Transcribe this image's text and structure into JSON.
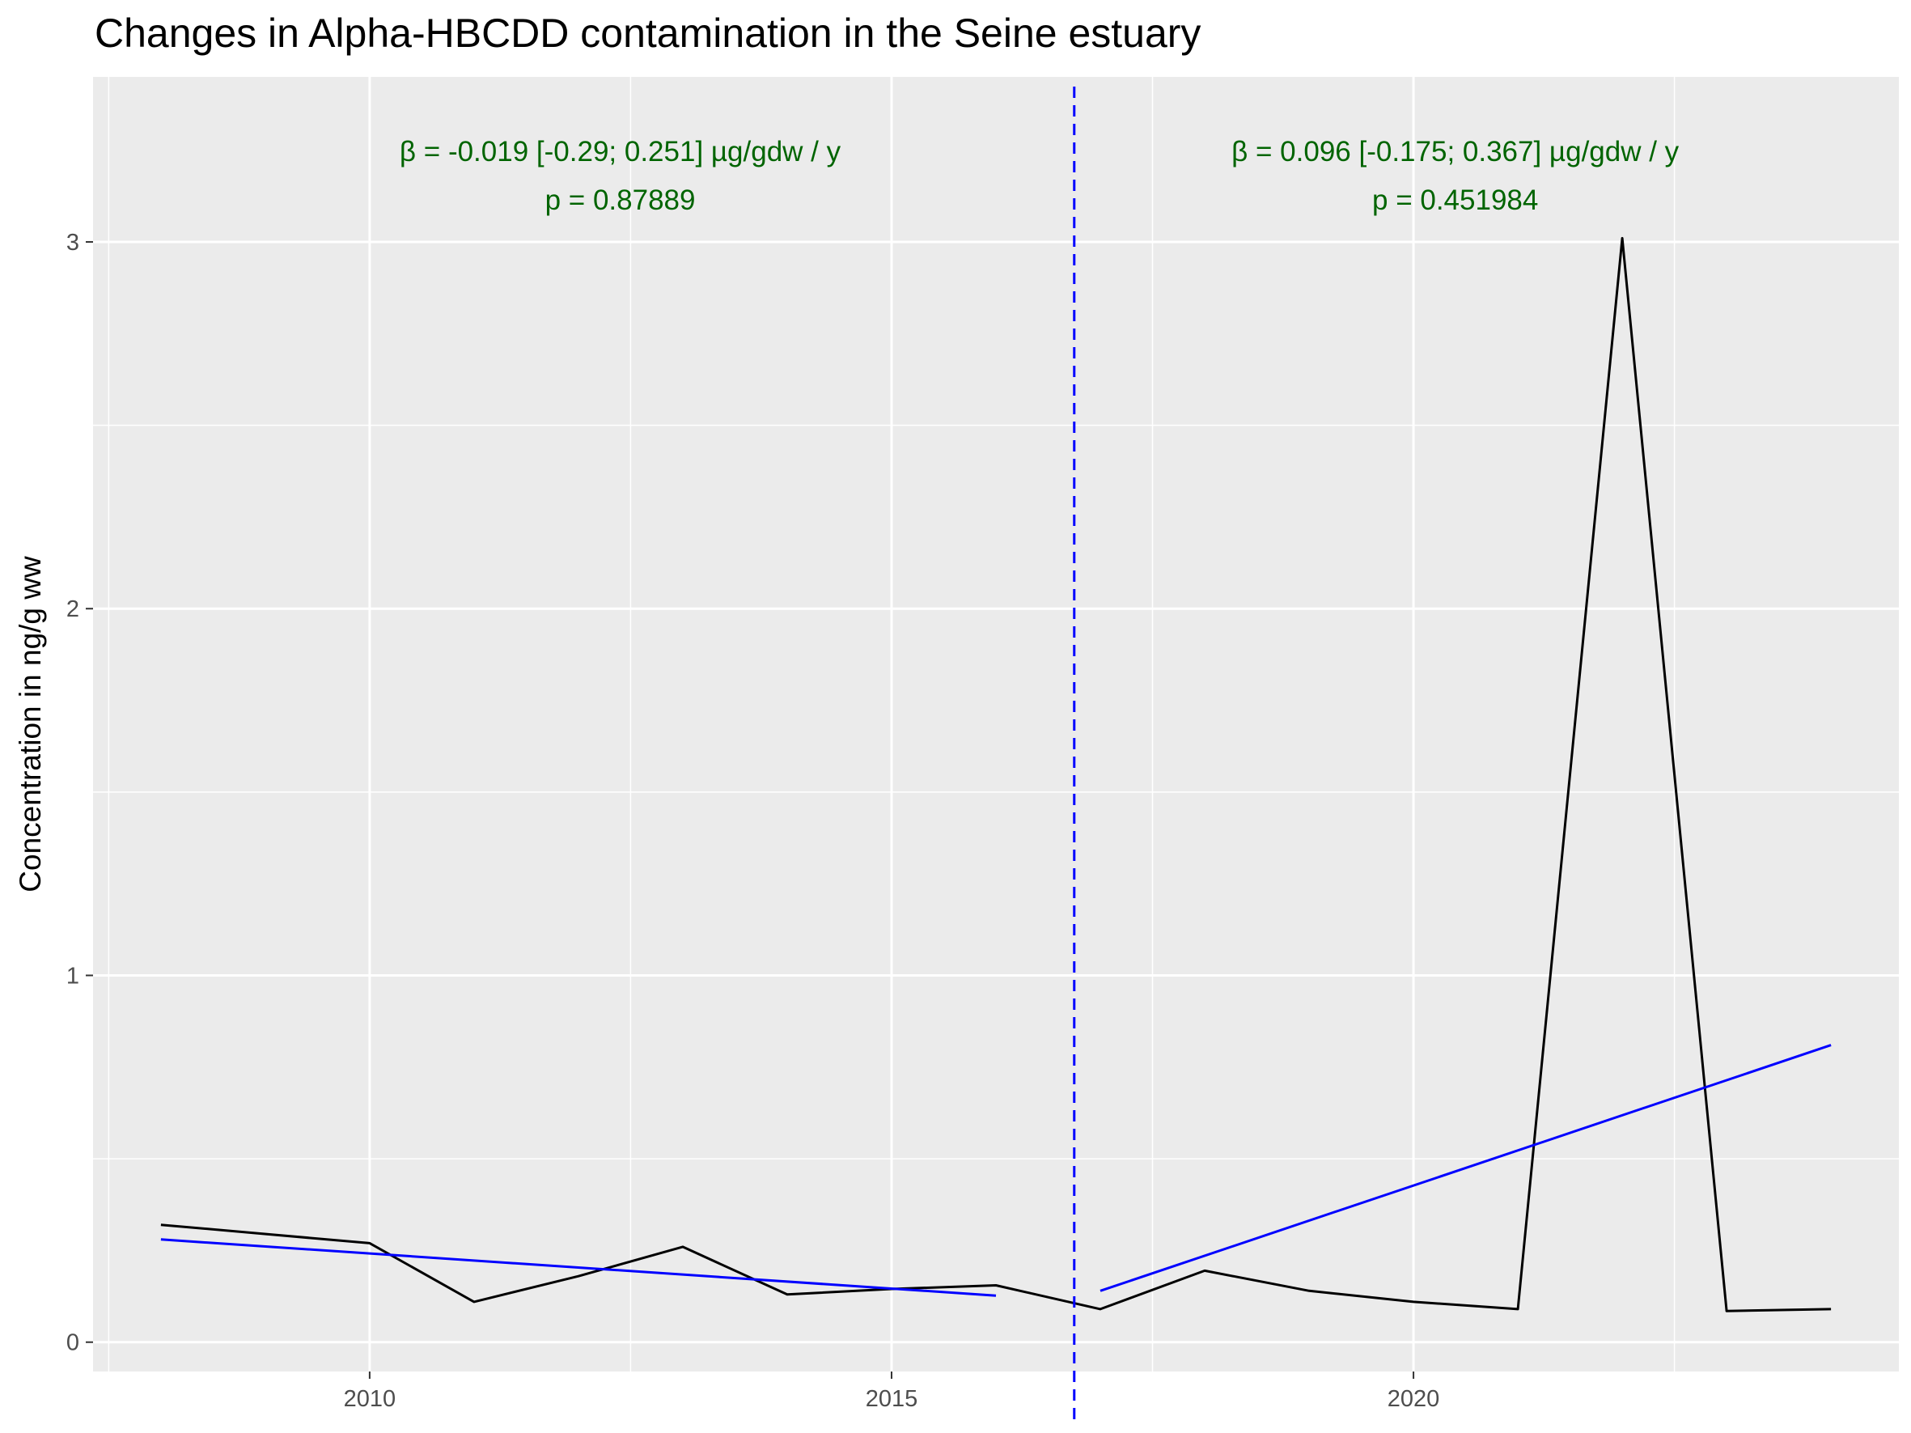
{
  "chart_data": {
    "type": "line",
    "title": "Changes in Alpha-HBCDD contamination in the Seine estuary",
    "xlabel": "",
    "ylabel": "Concentration in ng/g ww",
    "xlim": [
      2007.35,
      2024.65
    ],
    "ylim": [
      -0.08,
      3.45
    ],
    "x_ticks": [
      2010,
      2015,
      2020
    ],
    "y_ticks": [
      0,
      1,
      2,
      3
    ],
    "grid": true,
    "legend": "none",
    "series": [
      {
        "role": "observed",
        "color": "#000000",
        "x": [
          2008,
          2010,
          2011,
          2012,
          2013,
          2014,
          2015,
          2016,
          2017,
          2018,
          2019,
          2020,
          2021,
          2022,
          2023,
          2024
        ],
        "y": [
          0.32,
          0.27,
          0.11,
          0.18,
          0.26,
          0.13,
          0.145,
          0.155,
          0.09,
          0.195,
          0.14,
          0.11,
          0.09,
          3.01,
          0.085,
          0.09
        ]
      },
      {
        "role": "trend-before-break",
        "color": "#0000ff",
        "x": [
          2008,
          2016
        ],
        "y": [
          0.28,
          0.127
        ]
      },
      {
        "role": "trend-after-break",
        "color": "#0000ff",
        "x": [
          2017,
          2024
        ],
        "y": [
          0.14,
          0.81
        ]
      }
    ],
    "breakpoint": {
      "x": 2016.75,
      "color": "#0000ff",
      "style": "dashed"
    },
    "annotations": [
      {
        "line1": "β = -0.019 [-0.29; 0.251] µg/gdw / y",
        "line2": "p = 0.87889",
        "x": 2012.4,
        "y": 3.22,
        "color": "#006400"
      },
      {
        "line1": "β = 0.096 [-0.175; 0.367] µg/gdw / y",
        "line2": "p = 0.451984",
        "x": 2020.4,
        "y": 3.22,
        "color": "#006400"
      }
    ]
  }
}
